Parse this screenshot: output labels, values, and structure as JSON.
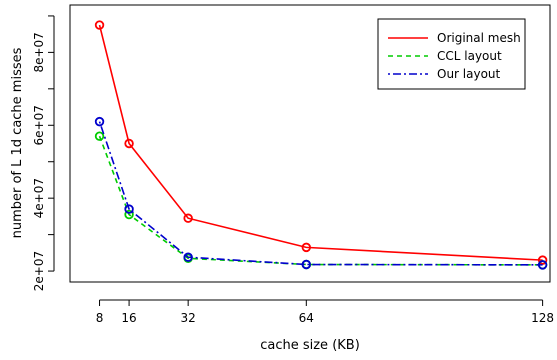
{
  "chart_data": {
    "type": "line",
    "title": "",
    "xlabel": "cache size (KB)",
    "ylabel": "number of L 1d cache misses",
    "x": [
      8,
      16,
      32,
      64,
      128
    ],
    "x_ticks": [
      "8",
      "16",
      "32",
      "64",
      "128"
    ],
    "y_ticks": [
      {
        "value": 20000000,
        "label": "2e+07"
      },
      {
        "value": 40000000,
        "label": "4e+07"
      },
      {
        "value": 60000000,
        "label": "6e+07"
      },
      {
        "value": 80000000,
        "label": "8e+07"
      }
    ],
    "xlim": [
      0,
      130
    ],
    "ylim": [
      17000000,
      93000000
    ],
    "grid": false,
    "legend_position": "top-right",
    "series": [
      {
        "name": "Original mesh",
        "color": "#ff0000",
        "dash": "solid",
        "values": [
          87500000,
          55000000,
          34500000,
          26500000,
          23000000
        ]
      },
      {
        "name": "CCL layout",
        "color": "#00cc00",
        "dash": "dashed",
        "values": [
          57000000,
          35500000,
          23500000,
          21800000,
          21700000
        ]
      },
      {
        "name": "Our layout",
        "color": "#0000cc",
        "dash": "dotdash",
        "values": [
          61000000,
          37000000,
          23800000,
          21800000,
          21700000
        ]
      }
    ]
  }
}
